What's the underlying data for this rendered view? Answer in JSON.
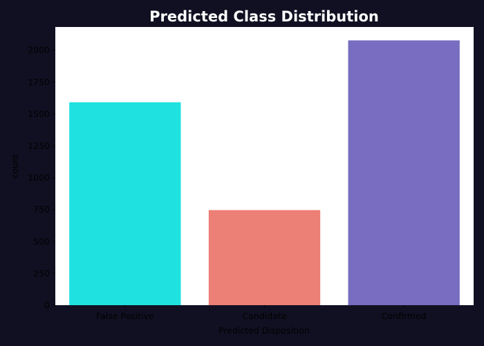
{
  "chart_data": {
    "type": "bar",
    "title": "Predicted Class Distribution",
    "xlabel": "Predicted Disposition",
    "ylabel": "count",
    "categories": [
      "False Positive",
      "Candidate",
      "Confirmed"
    ],
    "values": [
      1590,
      745,
      2075
    ],
    "colors": [
      "#1fe2e0",
      "#ec7f76",
      "#786dc1"
    ],
    "ylim": [
      0,
      2180
    ],
    "yticks": [
      0,
      250,
      500,
      750,
      1000,
      1250,
      1500,
      1750,
      2000
    ],
    "ytick_labels": [
      "0",
      "250",
      "500",
      "750",
      "1000",
      "1250",
      "1500",
      "1750",
      "2000"
    ],
    "grid": false,
    "legend": "none"
  },
  "style": {
    "figure_background": "#111022",
    "axes_background": "#ffffff",
    "title_color": "#ffffff",
    "text_color": "#000000"
  }
}
